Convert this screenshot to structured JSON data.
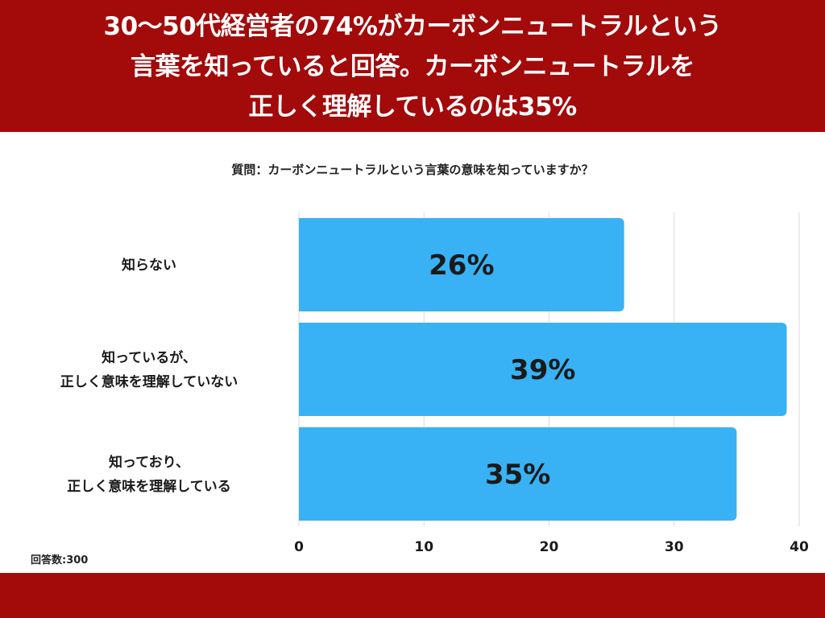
{
  "header": {
    "title_lines": [
      "30〜50代経営者の74%がカーボンニュートラルという",
      "言葉を知っていると回答。カーボンニュートラルを",
      "正しく理解しているのは35%"
    ]
  },
  "question": "質問：カーボンニュートラルという言葉の意味を知っていますか？",
  "sample_size_label": "回答数:300",
  "colors": {
    "header_bg": "#a30a0a",
    "bar": "#38b2f5",
    "grid": "#d9d9d9",
    "text": "#1a1a1a"
  },
  "chart_data": {
    "type": "bar",
    "orientation": "horizontal",
    "categories": [
      [
        "知らない"
      ],
      [
        "知っているが、",
        "正しく意味を理解していない"
      ],
      [
        "知っており、",
        "正しく意味を理解している"
      ]
    ],
    "values": [
      26,
      39,
      35
    ],
    "value_labels": [
      "26%",
      "39%",
      "35%"
    ],
    "xlim": [
      0,
      40
    ],
    "xticks": [
      0,
      10,
      20,
      30,
      40
    ],
    "grid": true,
    "title": "",
    "xlabel": "",
    "ylabel": ""
  }
}
